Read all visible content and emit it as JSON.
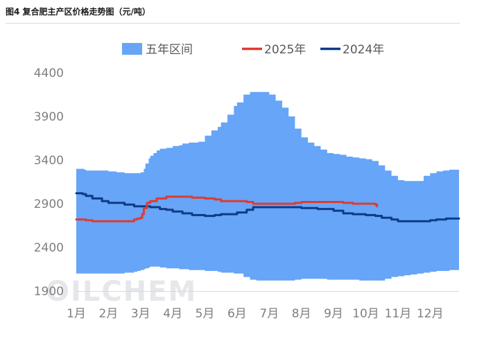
{
  "figure": {
    "title": "图4  复合肥主产区价格走势图（元/吨）",
    "watermark": "OILCHEM"
  },
  "chart_data": {
    "type": "line",
    "title": "图4  复合肥主产区价格走势图（元/吨）",
    "xlabel": "",
    "ylabel": "",
    "ylim": [
      1900,
      4400
    ],
    "yticks": [
      1900,
      2400,
      2900,
      3400,
      3900,
      4400
    ],
    "xlim": [
      1,
      12.9
    ],
    "categories": [
      "1月",
      "2月",
      "3月",
      "4月",
      "5月",
      "6月",
      "7月",
      "8月",
      "9月",
      "10月",
      "11月",
      "12月"
    ],
    "grid": false,
    "legend_position": "top",
    "colors": {
      "band": "#66a5f7",
      "s2025": "#e03a30",
      "s2024": "#0e3a87",
      "axis": "#d9d9d9"
    },
    "band": {
      "name": "五年区间",
      "x": [
        1.0,
        1.25,
        1.3,
        2.0,
        2.25,
        2.5,
        2.8,
        2.9,
        3.0,
        3.1,
        3.15,
        3.25,
        3.3,
        3.4,
        3.5,
        3.6,
        3.8,
        4.0,
        4.2,
        4.3,
        4.5,
        4.8,
        5.0,
        5.2,
        5.4,
        5.5,
        5.7,
        5.9,
        6.0,
        6.2,
        6.4,
        6.6,
        6.8,
        7.0,
        7.2,
        7.4,
        7.6,
        7.8,
        8.0,
        8.2,
        8.4,
        8.6,
        8.8,
        9.0,
        9.2,
        9.4,
        9.6,
        9.8,
        10.0,
        10.2,
        10.4,
        10.6,
        10.8,
        11.0,
        11.2,
        11.4,
        11.6,
        11.8,
        12.0,
        12.2,
        12.4,
        12.6,
        12.9
      ],
      "upper": [
        3300,
        3290,
        3280,
        3270,
        3260,
        3250,
        3250,
        3250,
        3260,
        3300,
        3360,
        3420,
        3450,
        3480,
        3510,
        3530,
        3540,
        3560,
        3570,
        3590,
        3600,
        3610,
        3680,
        3740,
        3780,
        3830,
        3920,
        4020,
        4060,
        4150,
        4180,
        4180,
        4180,
        4150,
        4080,
        4000,
        3900,
        3760,
        3660,
        3600,
        3560,
        3520,
        3480,
        3470,
        3460,
        3440,
        3430,
        3420,
        3410,
        3390,
        3340,
        3280,
        3220,
        3170,
        3160,
        3160,
        3160,
        3220,
        3250,
        3270,
        3280,
        3290,
        3300
      ],
      "lower": [
        2100,
        2100,
        2100,
        2100,
        2100,
        2100,
        2110,
        2120,
        2130,
        2140,
        2150,
        2160,
        2170,
        2180,
        2180,
        2180,
        2170,
        2160,
        2160,
        2150,
        2150,
        2140,
        2140,
        2130,
        2130,
        2120,
        2110,
        2110,
        2100,
        2100,
        2060,
        2030,
        2020,
        2020,
        2020,
        2020,
        2020,
        2020,
        2030,
        2040,
        2040,
        2040,
        2040,
        2030,
        2030,
        2030,
        2030,
        2030,
        2020,
        2020,
        2020,
        2020,
        2040,
        2060,
        2070,
        2080,
        2090,
        2100,
        2110,
        2120,
        2130,
        2130,
        2140
      ]
    },
    "series": [
      {
        "name": "2025年",
        "color": "#e03a30",
        "x": [
          1.0,
          1.3,
          1.5,
          2.0,
          2.5,
          2.8,
          2.9,
          3.0,
          3.05,
          3.1,
          3.2,
          3.3,
          3.5,
          3.8,
          4.0,
          4.3,
          4.6,
          5.0,
          5.3,
          5.5,
          6.0,
          6.3,
          6.5,
          7.0,
          7.5,
          7.8,
          8.0,
          8.5,
          9.0,
          9.3,
          9.6,
          10.0,
          10.3,
          10.35
        ],
        "values": [
          2720,
          2710,
          2700,
          2700,
          2700,
          2720,
          2730,
          2740,
          2780,
          2850,
          2910,
          2930,
          2960,
          2980,
          2980,
          2980,
          2970,
          2960,
          2950,
          2930,
          2930,
          2920,
          2900,
          2900,
          2900,
          2910,
          2920,
          2920,
          2920,
          2910,
          2900,
          2900,
          2890,
          2870
        ]
      },
      {
        "name": "2024年",
        "color": "#0e3a87",
        "x": [
          1.0,
          1.2,
          1.3,
          1.5,
          1.8,
          2.0,
          2.5,
          2.8,
          3.0,
          3.3,
          3.6,
          3.8,
          4.0,
          4.3,
          4.6,
          5.0,
          5.3,
          5.5,
          6.0,
          6.3,
          6.5,
          7.0,
          7.5,
          8.0,
          8.5,
          9.0,
          9.3,
          9.6,
          10.0,
          10.3,
          10.5,
          10.8,
          11.0,
          11.5,
          12.0,
          12.2,
          12.5,
          12.9
        ],
        "values": [
          3020,
          3010,
          2990,
          2960,
          2930,
          2910,
          2890,
          2870,
          2870,
          2860,
          2840,
          2830,
          2810,
          2790,
          2770,
          2760,
          2770,
          2780,
          2800,
          2830,
          2860,
          2860,
          2860,
          2850,
          2840,
          2820,
          2790,
          2780,
          2770,
          2760,
          2740,
          2720,
          2700,
          2700,
          2710,
          2720,
          2730,
          2730
        ]
      }
    ]
  }
}
